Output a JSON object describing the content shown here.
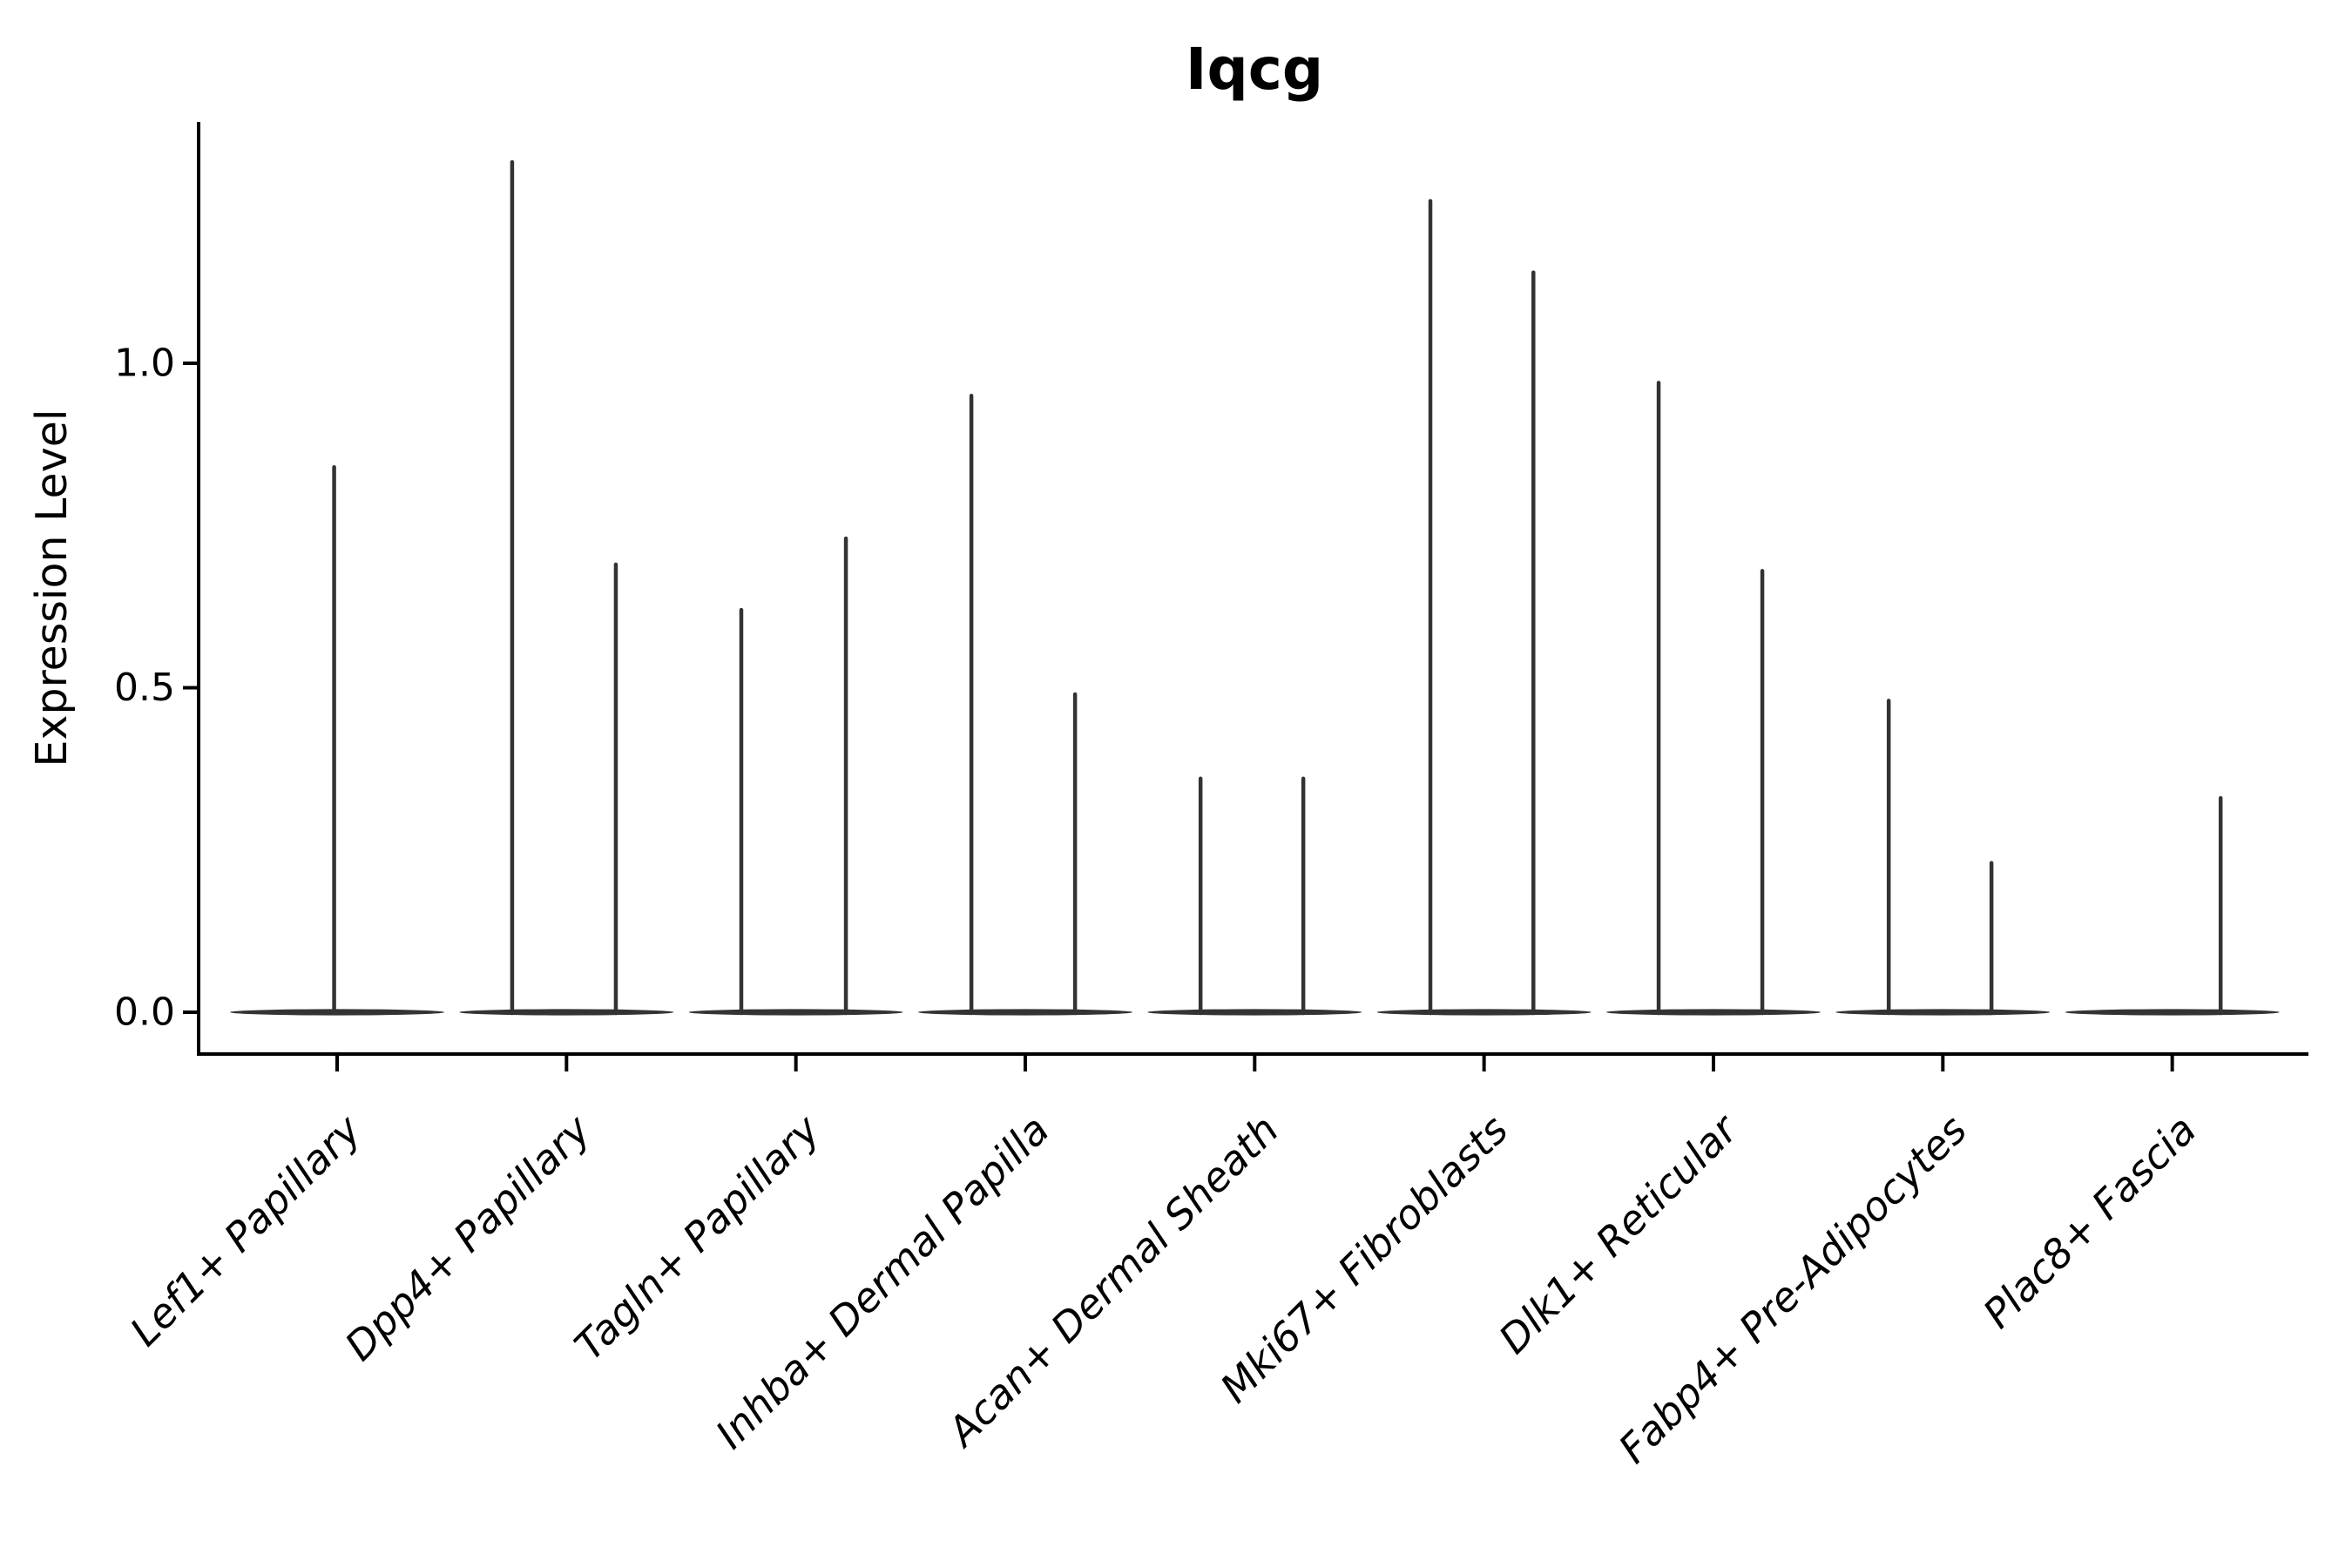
{
  "chart_data": {
    "type": "violin",
    "title": "Iqcg",
    "xlabel": "",
    "ylabel": "Expression Level",
    "legend": null,
    "grid": false,
    "background_color": "#ffffff",
    "violin_color": "#333333",
    "axis_color": "#000000",
    "text_color": "#000000",
    "ylim": [
      -0.065,
      1.372
    ],
    "yticks": [
      {
        "value": 0.0,
        "label": "0.0"
      },
      {
        "value": 0.5,
        "label": "0.5"
      },
      {
        "value": 1.0,
        "label": "1.0"
      }
    ],
    "categories": [
      "Lef1+ Papillary",
      "Dpp4+ Papillary",
      "Tagln+ Papillary",
      "Inhba+ Dermal Papilla",
      "Acan+ Dermal Sheath",
      "Mki67+ Fibroblasts",
      "Dlk1+ Reticular",
      "Fabp4+ Pre-Adipocytes",
      "Plac8+ Fascia"
    ],
    "baseline_halfwidth": 0.467,
    "violins": [
      {
        "category": "Lef1+ Papillary",
        "spikes": [
          {
            "pos": -0.013,
            "max": 0.84
          }
        ]
      },
      {
        "category": "Dpp4+ Papillary",
        "spikes": [
          {
            "pos": -0.237,
            "max": 1.31
          },
          {
            "pos": 0.215,
            "max": 0.69
          }
        ]
      },
      {
        "category": "Tagln+ Papillary",
        "spikes": [
          {
            "pos": -0.238,
            "max": 0.62
          },
          {
            "pos": 0.218,
            "max": 0.73
          }
        ]
      },
      {
        "category": "Inhba+ Dermal Papilla",
        "spikes": [
          {
            "pos": -0.235,
            "max": 0.95
          },
          {
            "pos": 0.217,
            "max": 0.49
          }
        ]
      },
      {
        "category": "Acan+ Dermal Sheath",
        "spikes": [
          {
            "pos": -0.236,
            "max": 0.36
          },
          {
            "pos": 0.212,
            "max": 0.36
          }
        ]
      },
      {
        "category": "Mki67+ Fibroblasts",
        "spikes": [
          {
            "pos": -0.234,
            "max": 1.25
          },
          {
            "pos": 0.215,
            "max": 1.14
          }
        ]
      },
      {
        "category": "Dlk1+ Reticular",
        "spikes": [
          {
            "pos": -0.239,
            "max": 0.97
          },
          {
            "pos": 0.213,
            "max": 0.68
          }
        ]
      },
      {
        "category": "Fabp4+ Pre-Adipocytes",
        "spikes": [
          {
            "pos": -0.236,
            "max": 0.48
          },
          {
            "pos": 0.212,
            "max": 0.23
          }
        ]
      },
      {
        "category": "Plac8+ Fascia",
        "spikes": [
          {
            "pos": 0.211,
            "max": 0.33
          }
        ]
      }
    ]
  }
}
